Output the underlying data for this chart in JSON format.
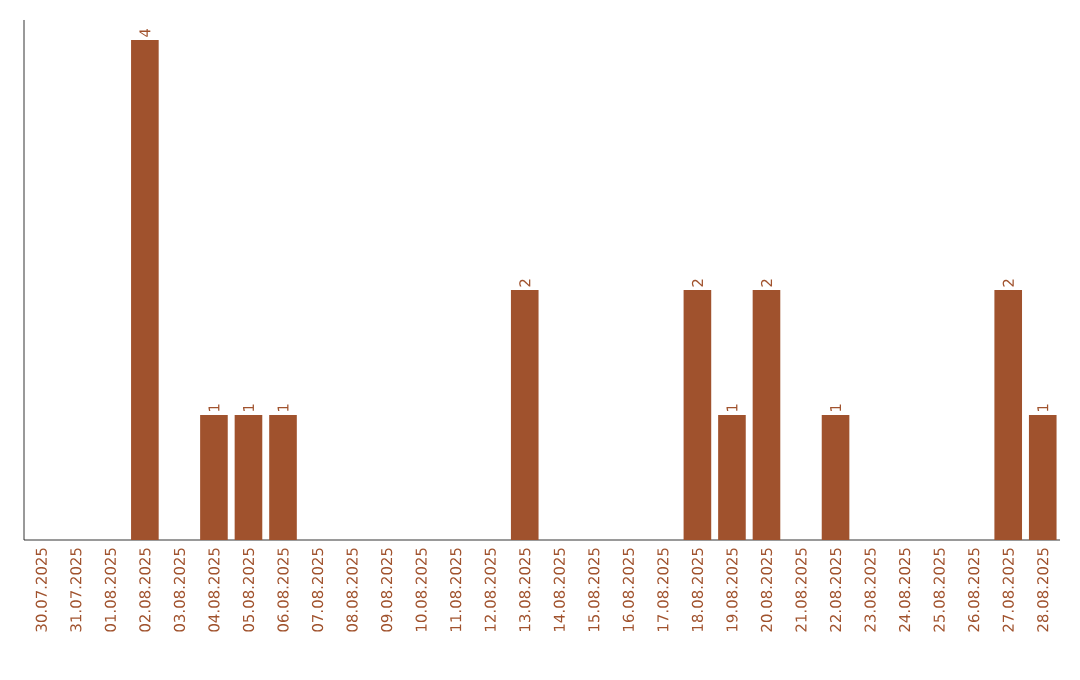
{
  "chart_data": {
    "type": "bar",
    "categories": [
      "30.07.2025",
      "31.07.2025",
      "01.08.2025",
      "02.08.2025",
      "03.08.2025",
      "04.08.2025",
      "05.08.2025",
      "06.08.2025",
      "07.08.2025",
      "08.08.2025",
      "09.08.2025",
      "10.08.2025",
      "11.08.2025",
      "12.08.2025",
      "13.08.2025",
      "14.08.2025",
      "15.08.2025",
      "16.08.2025",
      "17.08.2025",
      "18.08.2025",
      "19.08.2025",
      "20.08.2025",
      "21.08.2025",
      "22.08.2025",
      "23.08.2025",
      "24.08.2025",
      "25.08.2025",
      "26.08.2025",
      "27.08.2025",
      "28.08.2025"
    ],
    "values": [
      0,
      0,
      0,
      4,
      0,
      1,
      1,
      1,
      0,
      0,
      0,
      0,
      0,
      0,
      2,
      0,
      0,
      0,
      0,
      2,
      1,
      2,
      0,
      1,
      0,
      0,
      0,
      0,
      2,
      1
    ],
    "value_labels": [
      null,
      null,
      null,
      "4",
      null,
      "1",
      "1",
      "1",
      null,
      null,
      null,
      null,
      null,
      null,
      "2",
      null,
      null,
      null,
      null,
      "2",
      "1",
      "2",
      null,
      "1",
      null,
      null,
      null,
      null,
      "2",
      "1"
    ],
    "color": "#a0522d"
  }
}
